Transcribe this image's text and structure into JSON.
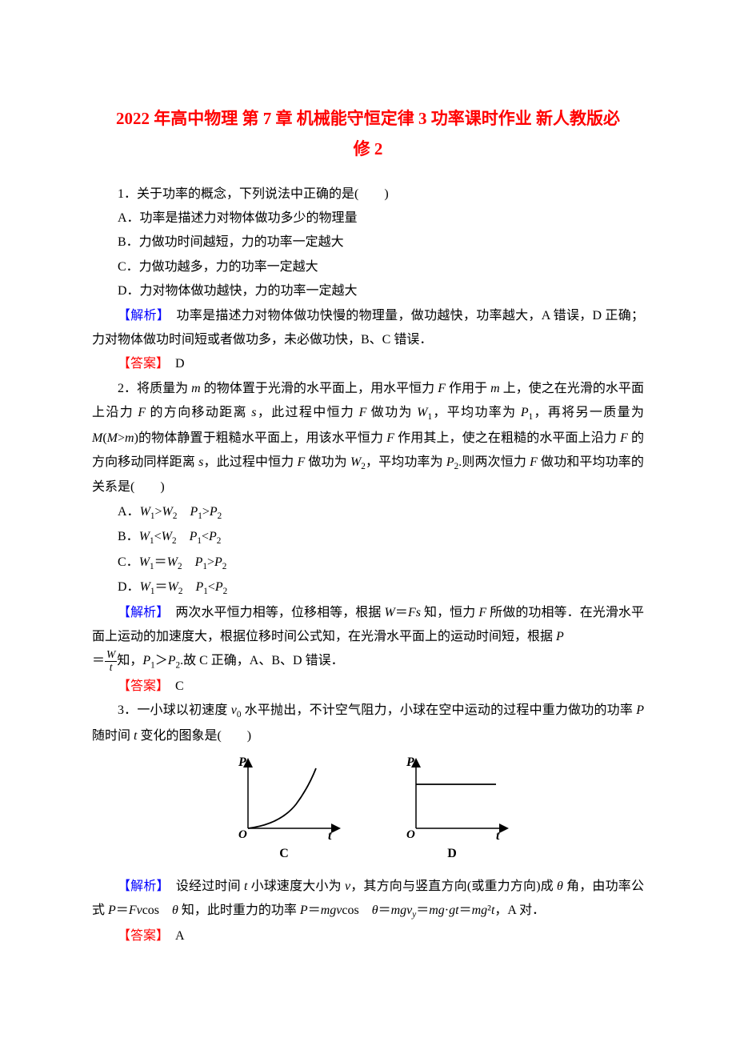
{
  "title_line1": "2022 年高中物理 第 7 章 机械能守恒定律 3 功率课时作业 新人教版必",
  "title_line2": "修 2",
  "q1": {
    "stem": "1．关于功率的概念，下列说法中正确的是(　　)",
    "A": "A．功率是描述力对物体做功多少的物理量",
    "B": "B．力做功时间越短，力的功率一定越大",
    "C": "C．力做功越多，力的功率一定越大",
    "D": "D．力对物体做功越快，力的功率一定越大",
    "analysis": "　功率是描述力对物体做功快慢的物理量，做功越快，功率越大，A 错误，D 正确；力对物体做功时间短或者做功多，未必做功快，B、C 错误．",
    "answer": "　D"
  },
  "q2": {
    "stem_html": "2．将质量为 <span class='italic-var'>m</span> 的物体置于光滑的水平面上，用水平恒力 <span class='italic-var'>F</span> 作用于 <span class='italic-var'>m</span> 上，使之在光滑的水平面上沿力 <span class='italic-var'>F</span> 的方向移动距离 <span class='italic-var'>s</span>，此过程中恒力 <span class='italic-var'>F</span> 做功为 <span class='italic-var'>W</span><span class='sub'>1</span>，平均功率为 <span class='italic-var'>P</span><span class='sub'>1</span>，再将另一质量为 <span class='italic-var'>M</span>(<span class='italic-var'>M</span>&gt;<span class='italic-var'>m</span>)的物体静置于粗糙水平面上，用该水平恒力 <span class='italic-var'>F</span> 作用其上，使之在粗糙的水平面上沿力 <span class='italic-var'>F</span> 的方向移动同样距离 <span class='italic-var'>s</span>，此过程中恒力 <span class='italic-var'>F</span> 做功为 <span class='italic-var'>W</span><span class='sub'>2</span>，平均功率为 <span class='italic-var'>P</span><span class='sub'>2</span>.则两次恒力 <span class='italic-var'>F</span> 做功和平均功率的关系是(　　)",
    "A": "A．<span class='italic-var'>W</span><span class='sub'>1</span>&gt;<span class='italic-var'>W</span><span class='sub'>2</span>　<span class='italic-var'>P</span><span class='sub'>1</span>&gt;<span class='italic-var'>P</span><span class='sub'>2</span>",
    "B": "B．<span class='italic-var'>W</span><span class='sub'>1</span>&lt;<span class='italic-var'>W</span><span class='sub'>2</span>　<span class='italic-var'>P</span><span class='sub'>1</span>&lt;<span class='italic-var'>P</span><span class='sub'>2</span>",
    "C": "C．<span class='italic-var'>W</span><span class='sub'>1</span>＝<span class='italic-var'>W</span><span class='sub'>2</span>　<span class='italic-var'>P</span><span class='sub'>1</span>&gt;<span class='italic-var'>P</span><span class='sub'>2</span>",
    "D": "D．<span class='italic-var'>W</span><span class='sub'>1</span>＝<span class='italic-var'>W</span><span class='sub'>2</span>　<span class='italic-var'>P</span><span class='sub'>1</span>&lt;<span class='italic-var'>P</span><span class='sub'>2</span>",
    "analysis_html": "　两次水平恒力相等，位移相等，根据 <span class='italic-var'>W</span>＝<span class='italic-var'>Fs</span> 知，恒力 <span class='italic-var'>F</span> 所做的功相等．在光滑水平面上运动的加速度大，根据位移时间公式知，在光滑水平面上的运动时间短，根据 <span class='italic-var'>P</span>",
    "analysis2_html": "＝<span class='frac'><span class='frac-num'><span class='italic-var'>W</span></span><span class='frac-den'><span class='italic-var'>t</span></span></span>知，<span class='italic-var'>P</span><span class='sub'>1</span>＞<span class='italic-var'>P</span><span class='sub'>2</span>.故 C 正确，A、B、D 错误．",
    "answer": "　C"
  },
  "q3": {
    "stem_html": "3．一小球以初速度 <span class='italic-var'>v</span><span class='sub'>0</span> 水平抛出，不计空气阻力，小球在空中运动的过程中重力做功的功率 <span class='italic-var'>P</span> 随时间 <span class='italic-var'>t</span> 变化的图象是(　　)",
    "analysis_html": "　设经过时间 <span class='italic-var'>t</span> 小球速度大小为 <span class='italic-var'>v</span>，其方向与竖直方向(或重力方向)成 <span class='italic-var'>θ</span> 角，由功率公式 <span class='italic-var'>P</span>＝<span class='italic-var'>Fv</span>cos　<span class='italic-var'>θ</span> 知，此时重力的功率 <span class='italic-var'>P</span>＝<span class='italic-var'>mgv</span>cos　<span class='italic-var'>θ</span>＝<span class='italic-var'>mgv<span class='sub'>y</span></span>＝<span class='italic-var'>mg</span>·<span class='italic-var'>gt</span>＝<span class='italic-var'>mg</span>²<span class='italic-var'>t</span>，A 对．",
    "answer": "　A"
  },
  "chart": {
    "axis_y": "P",
    "axis_x": "t",
    "origin": "O",
    "label_C": "C",
    "label_D": "D",
    "axis_color": "#000000",
    "axis_width": 1.5,
    "curve_color": "#000000",
    "curve_width": 1.5,
    "font_family": "Times New Roman",
    "font_style_axis": "italic bold",
    "width": 150,
    "height": 100
  },
  "labels": {
    "analysis": "【解析】",
    "answer": "【答案】"
  }
}
